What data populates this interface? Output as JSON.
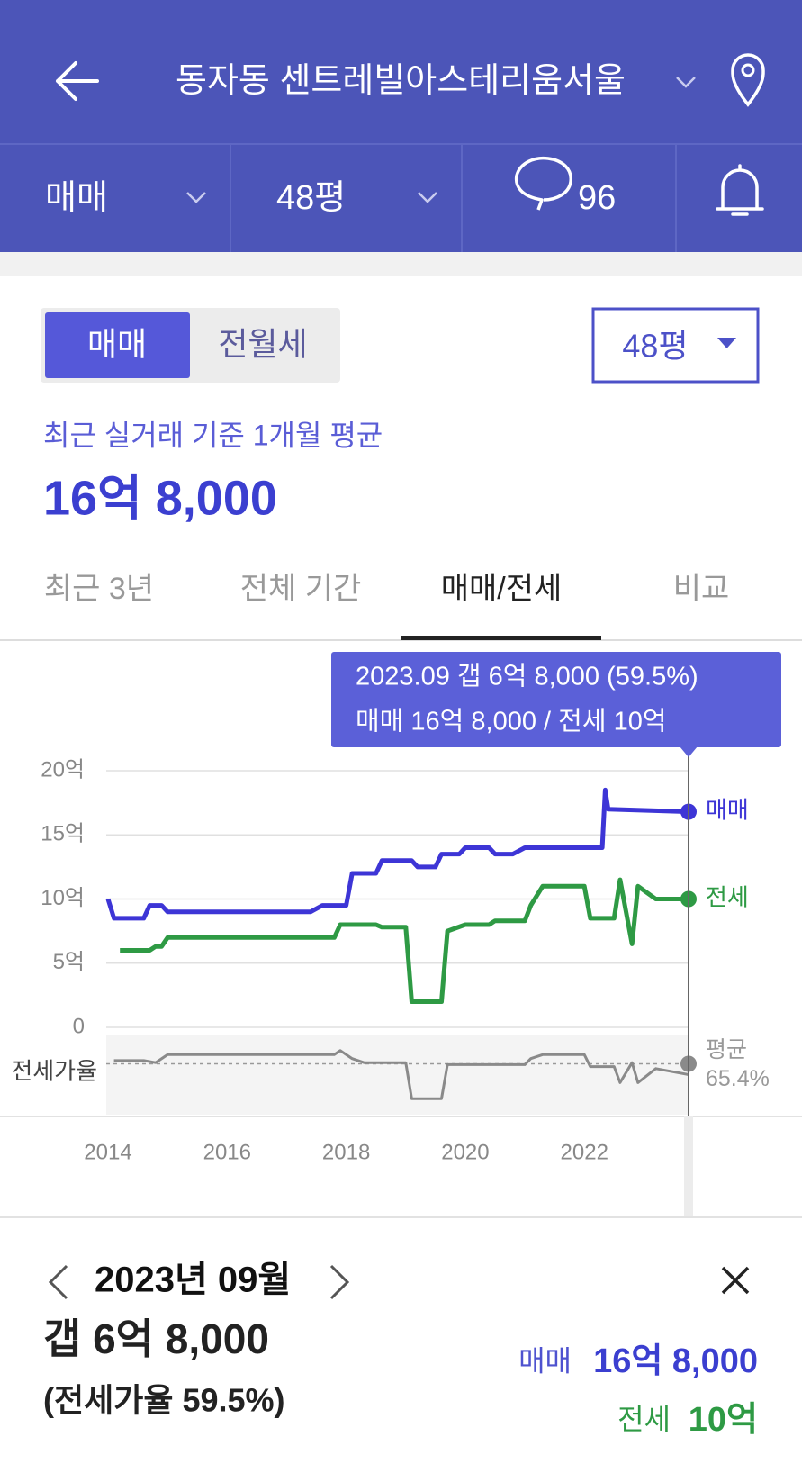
{
  "header": {
    "title": "동자동 센트레빌아스테리움서울"
  },
  "filters": {
    "deal_type": "매매",
    "size": "48평",
    "comments": "96"
  },
  "toggle": {
    "options": [
      "매매",
      "전월세"
    ],
    "size_select": "48평"
  },
  "summary": {
    "caption": "최근 실거래 기준 1개월 평균",
    "price": "16억 8,000"
  },
  "tabs": [
    "최근 3년",
    "전체 기간",
    "매매/전세",
    "비교"
  ],
  "tooltip": {
    "line1": "2023.09  갭 6억 8,000 (59.5%)",
    "line2": "매매 16억 8,000 / 전세 10억"
  },
  "chart_data": [
    {
      "type": "line",
      "xlim": [
        2014,
        2023.75
      ],
      "xticks": [
        2014,
        2016,
        2018,
        2020,
        2022
      ],
      "ylim": [
        0,
        20
      ],
      "yticks": [
        0,
        {
          "value": 5,
          "label": "5억"
        },
        {
          "value": 10,
          "label": "10억"
        },
        {
          "value": 15,
          "label": "15억"
        },
        {
          "value": 20,
          "label": "20억"
        }
      ],
      "grid": true,
      "series": [
        {
          "name": "매매",
          "color": "#3d35d6",
          "x": [
            2014.0,
            2014.1,
            2014.6,
            2014.7,
            2014.9,
            2015.0,
            2017.4,
            2017.6,
            2018.0,
            2018.1,
            2018.5,
            2018.6,
            2019.1,
            2019.2,
            2019.5,
            2019.6,
            2019.9,
            2020.0,
            2020.4,
            2020.5,
            2020.8,
            2021.0,
            2022.3,
            2022.35,
            2022.4,
            2023.75
          ],
          "values": [
            10,
            8.5,
            8.5,
            9.5,
            9.5,
            9,
            9,
            9.5,
            9.5,
            12,
            12,
            13,
            13,
            12.5,
            12.5,
            13.5,
            13.5,
            14,
            14,
            13.5,
            13.5,
            14,
            14,
            18.5,
            17,
            16.8
          ]
        },
        {
          "name": "전세",
          "color": "#2e9a44",
          "x": [
            2014.2,
            2014.7,
            2014.8,
            2014.9,
            2015.0,
            2017.8,
            2017.9,
            2018.5,
            2018.6,
            2019.0,
            2019.1,
            2019.6,
            2019.7,
            2020.0,
            2020.4,
            2020.5,
            2021.0,
            2021.1,
            2021.3,
            2022.0,
            2022.1,
            2022.5,
            2022.6,
            2022.8,
            2022.9,
            2023.2,
            2023.75
          ],
          "values": [
            6,
            6,
            6.3,
            6.3,
            7,
            7,
            8,
            8,
            7.8,
            7.8,
            2,
            2,
            7.5,
            8,
            8,
            8.3,
            8.3,
            9.5,
            11,
            11,
            8.5,
            8.5,
            11.5,
            6.5,
            11,
            10,
            10
          ]
        }
      ]
    },
    {
      "type": "line",
      "title": "전세가율",
      "xlim": [
        2014,
        2023.75
      ],
      "ylim": [
        40,
        80
      ],
      "series": [
        {
          "name": "전세가율",
          "color": "#8a8a8a",
          "x": [
            2014.1,
            2014.6,
            2014.8,
            2015.0,
            2017.8,
            2017.9,
            2018.1,
            2018.3,
            2019.0,
            2019.1,
            2019.6,
            2019.7,
            2021.0,
            2021.1,
            2021.3,
            2022.0,
            2022.1,
            2022.5,
            2022.6,
            2022.8,
            2022.9,
            2023.2,
            2023.75
          ],
          "values": [
            67,
            67,
            66,
            70,
            70,
            72,
            68,
            66,
            66,
            48,
            48,
            65,
            65,
            68,
            70,
            70,
            64,
            64,
            56,
            66,
            56,
            63,
            60
          ]
        }
      ],
      "avg_label": "평균",
      "avg": 65.4,
      "avg_value_label": "65.4%"
    }
  ],
  "detail": {
    "date": "2023년 09월",
    "gap": "갭 6억 8,000",
    "ratio": "(전세가율 59.5%)",
    "sale_label": "매매",
    "sale": "16억 8,000",
    "jeonse_label": "전세",
    "jeonse": "10억"
  }
}
